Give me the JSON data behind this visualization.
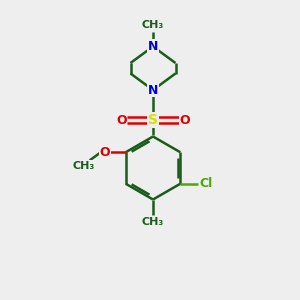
{
  "background_color": "#eeeeee",
  "bond_color": "#1a5c1a",
  "N_color": "#0000dd",
  "O_color": "#dd0000",
  "S_color": "#dddd00",
  "Cl_color": "#4aaa00",
  "line_width": 1.8,
  "figsize": [
    3.0,
    3.0
  ],
  "dpi": 100,
  "xlim": [
    0,
    10
  ],
  "ylim": [
    0,
    10
  ]
}
